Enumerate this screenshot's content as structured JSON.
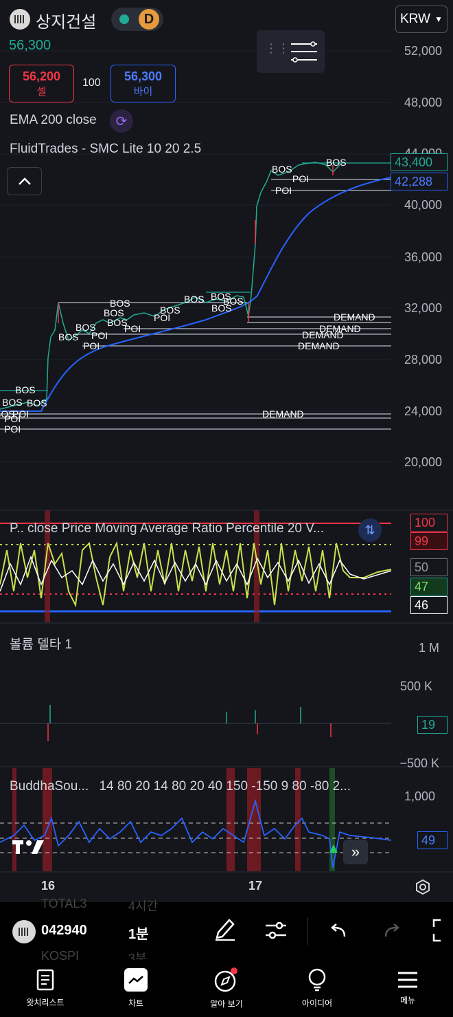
{
  "header": {
    "symbol_name": "상지건설",
    "last_price": "56,300",
    "badge_d": "D",
    "currency": "KRW",
    "sell_price": "56,200",
    "sell_label": "셀",
    "qty": "100",
    "buy_price": "56,300",
    "buy_label": "바이",
    "indicator_ema": "EMA 200 close",
    "indicator_smc": "FluidTrades - SMC Lite 10 20 2.5"
  },
  "price_axis": {
    "ticks": [
      "52,000",
      "48,000",
      "44,000",
      "40,000",
      "36,000",
      "32,000",
      "28,000",
      "24,000",
      "20,000"
    ],
    "tag_close": "43,400",
    "tag_ema": "42,288"
  },
  "annotations": {
    "bos": "BOS",
    "poi": "POI",
    "demand": "DEMAND"
  },
  "pane_ratio": {
    "title": "P.. close Price Moving Average Ratio Percentile 20 V...",
    "tag_100": "100",
    "tag_99": "99",
    "tag_50": "50",
    "tag_47": "47",
    "tag_46": "46"
  },
  "pane_volume": {
    "title": "볼륨 델타 1",
    "tick_1m": "1 M",
    "tick_500k": "500 K",
    "tick_neg500k": "−500 K",
    "tag_value": "19"
  },
  "pane_buddha": {
    "title": "BuddhaSou...",
    "params": "14 80 20 14 80 20 40 150 -150 9 80 -80 2...",
    "tick_1000": "1,000",
    "tag_value": "49"
  },
  "time_axis": {
    "label_16": "16",
    "label_17": "17"
  },
  "toolbar": {
    "ghost_top_left": "TOTAL3",
    "ghost_top_right": "4시간",
    "ticker_code": "042940",
    "interval": "1분",
    "ghost_bottom_left": "KOSPI",
    "ghost_bottom_right": "3분"
  },
  "nav": {
    "watchlist": "왓치리스트",
    "chart": "차트",
    "explore": "알아 보기",
    "ideas": "아이디어",
    "menu": "메뉴"
  },
  "colors": {
    "up": "#22ab94",
    "down": "#f23645",
    "ema": "#2962ff",
    "accent_orange": "#f7931a"
  }
}
